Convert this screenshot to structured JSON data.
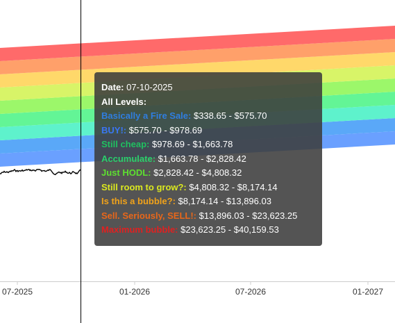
{
  "chart_data": {
    "type": "area",
    "x_tick_labels": [
      "07-2025",
      "01-2026",
      "07-2026",
      "01-2027"
    ],
    "bands": [
      {
        "name": "Basically a Fire Sale",
        "color": "#2f7ee0",
        "fill": "#6aa0ff"
      },
      {
        "name": "BUY!",
        "color": "#3b74f5",
        "fill": "#5aa8f8"
      },
      {
        "name": "Still cheap",
        "color": "#20c060",
        "fill": "#5ef2cc"
      },
      {
        "name": "Accumulate",
        "color": "#2ad06c",
        "fill": "#63f596"
      },
      {
        "name": "Just HODL",
        "color": "#5ee030",
        "fill": "#9cf76a"
      },
      {
        "name": "Still room to grow?",
        "color": "#dbe81f",
        "fill": "#d8f468"
      },
      {
        "name": "Is this a bubble?",
        "color": "#f0a21a",
        "fill": "#ffd86a"
      },
      {
        "name": "Sell. Seriously, SELL!",
        "color": "#e8671a",
        "fill": "#ffa06a"
      },
      {
        "name": "Maximum bubble",
        "color": "#e02020",
        "fill": "#ff6a6a"
      }
    ],
    "price_color": "#000000",
    "cursor_date": "07-10-2025"
  },
  "tooltip": {
    "date_label": "Date:",
    "date_value": "07-10-2025",
    "levels_label": "All Levels:",
    "rows": [
      {
        "label": "Basically a Fire Sale:",
        "value": "$338.65 - $575.70",
        "color": "#2f7ee0"
      },
      {
        "label": "BUY!:",
        "value": "$575.70 - $978.69",
        "color": "#3b74f5"
      },
      {
        "label": "Still cheap:",
        "value": "$978.69 - $1,663.78",
        "color": "#20c060"
      },
      {
        "label": "Accumulate:",
        "value": "$1,663.78 - $2,828.42",
        "color": "#2ad06c"
      },
      {
        "label": "Just HODL:",
        "value": "$2,828.42 - $4,808.32",
        "color": "#5ee030"
      },
      {
        "label": "Still room to grow?:",
        "value": "$4,808.32 - $8,174.14",
        "color": "#dbe81f"
      },
      {
        "label": "Is this a bubble?:",
        "value": "$8,174.14 - $13,896.03",
        "color": "#f0a21a"
      },
      {
        "label": "Sell. Seriously, SELL!:",
        "value": "$13,896.03 - $23,623.25",
        "color": "#e8671a"
      },
      {
        "label": "Maximum bubble:",
        "value": "$23,623.25 - $40,159.53",
        "color": "#e02020"
      }
    ]
  }
}
